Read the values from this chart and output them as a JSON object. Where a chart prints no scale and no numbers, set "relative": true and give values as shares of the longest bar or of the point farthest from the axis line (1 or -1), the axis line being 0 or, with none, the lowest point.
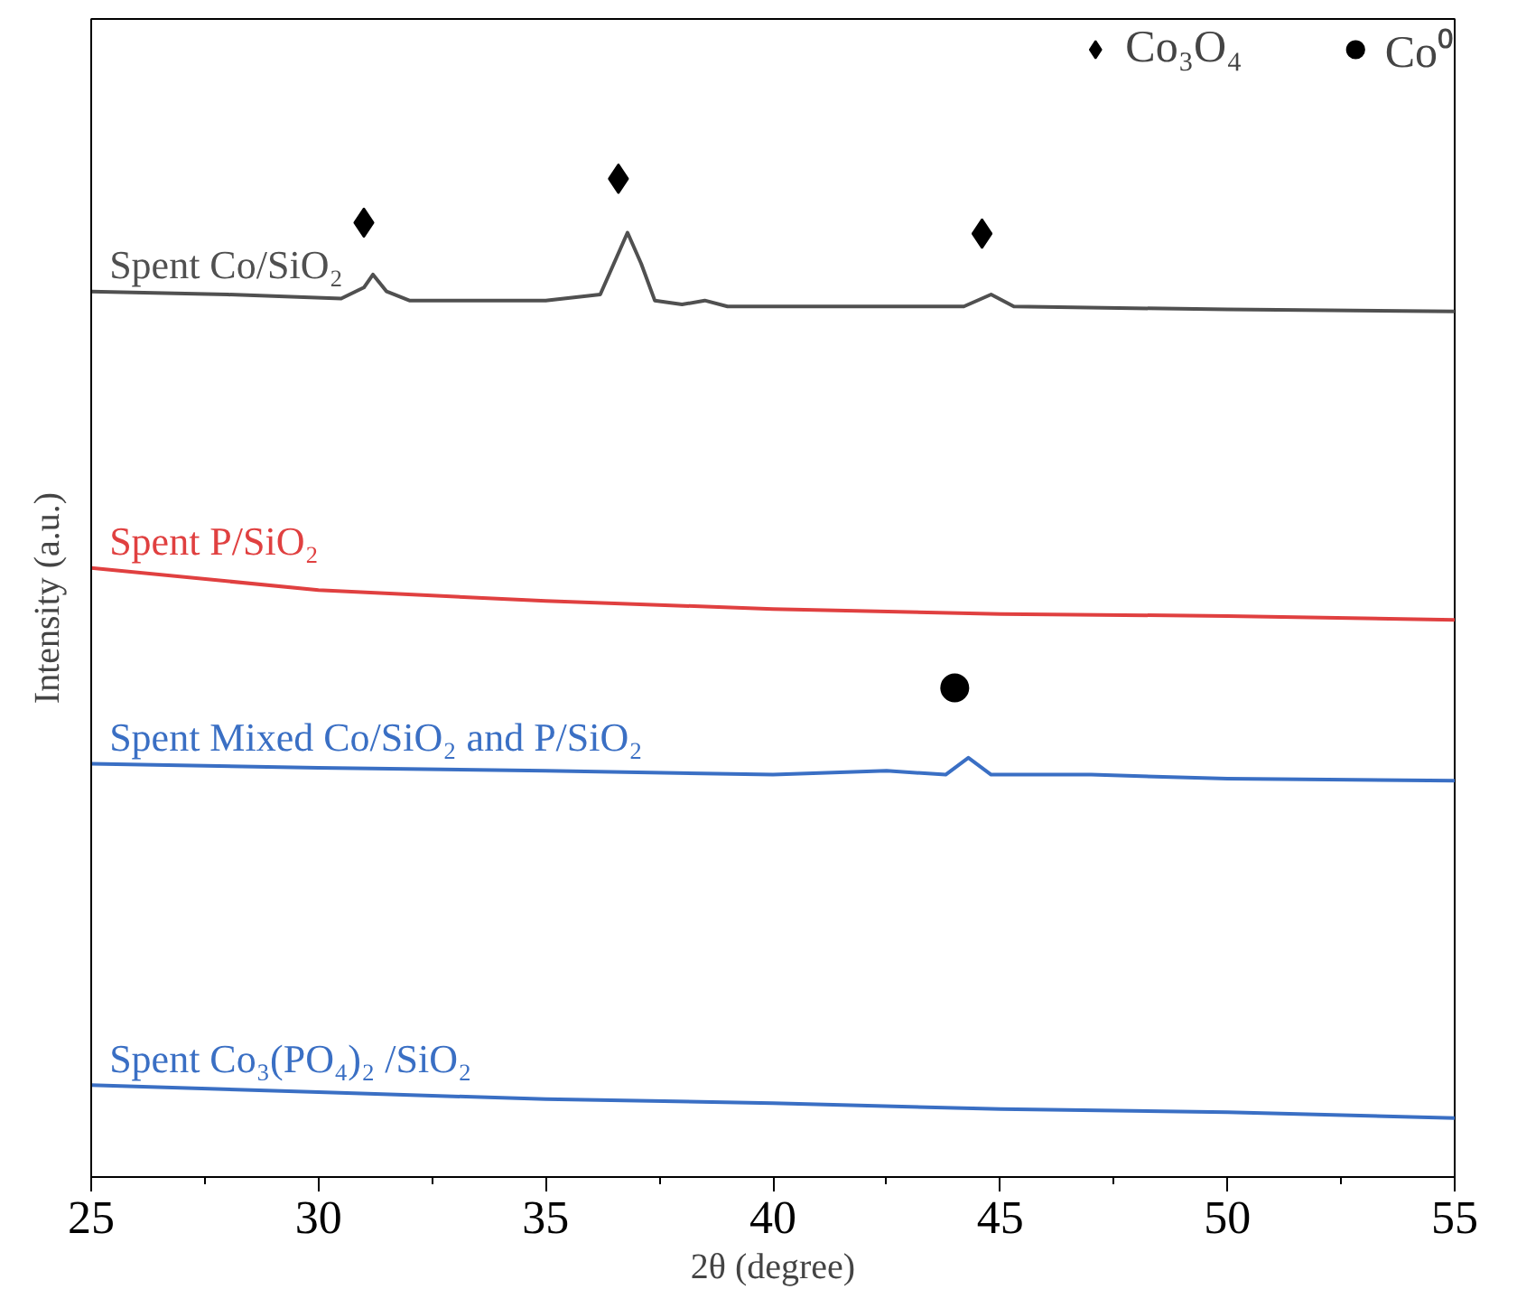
{
  "chart_data": {
    "type": "line",
    "relative": true,
    "xlabel": "2θ (degree)",
    "ylabel": "Intensity (a.u.)",
    "xlim": [
      25,
      55
    ],
    "xticks": [
      25,
      30,
      35,
      40,
      45,
      50,
      55
    ],
    "grid": false,
    "legend": "top right",
    "line_style": "solid",
    "series": [
      {
        "name": "Spent Co/SiO₂",
        "color": "#505050",
        "x": [
          25,
          28,
          30.5,
          31,
          31.2,
          31.5,
          32,
          35,
          36.2,
          36.5,
          36.8,
          37.1,
          37.4,
          38,
          38.5,
          39,
          42,
          44.2,
          44.8,
          45.3,
          50,
          55
        ],
        "values": [
          0.887,
          0.884,
          0.88,
          0.891,
          0.904,
          0.887,
          0.878,
          0.878,
          0.884,
          0.915,
          0.946,
          0.915,
          0.878,
          0.874,
          0.878,
          0.872,
          0.872,
          0.872,
          0.884,
          0.872,
          0.869,
          0.867
        ]
      },
      {
        "name": "Spent P/SiO₂",
        "color": "#e04040",
        "x": [
          25,
          30,
          35,
          40,
          45,
          50,
          55
        ],
        "values": [
          0.61,
          0.588,
          0.577,
          0.569,
          0.564,
          0.562,
          0.558
        ]
      },
      {
        "name": "Spent Mixed Co/SiO₂ and P/SiO₂",
        "color": "#3a6fc4",
        "x": [
          25,
          30,
          35,
          40,
          42.5,
          43.8,
          44.3,
          44.8,
          47,
          50,
          55
        ],
        "values": [
          0.414,
          0.41,
          0.407,
          0.403,
          0.407,
          0.403,
          0.42,
          0.403,
          0.403,
          0.399,
          0.397
        ]
      },
      {
        "name": "Spent Co₃(PO₄)₂ /SiO₂",
        "color": "#3a6fc4",
        "x": [
          25,
          30,
          35,
          40,
          45,
          50,
          55
        ],
        "values": [
          0.092,
          0.085,
          0.078,
          0.074,
          0.068,
          0.065,
          0.059
        ]
      },
      {
        "name": "Co₃O₄",
        "type": "scatter",
        "marker": "diamond",
        "color": "#000000",
        "x": [
          31,
          36.6,
          44.6
        ],
        "values": [
          0.956,
          1.0,
          0.945
        ]
      },
      {
        "name": "Co⁰",
        "type": "scatter",
        "marker": "circle",
        "color": "#000000",
        "x": [
          44
        ],
        "values": [
          0.49
        ]
      }
    ]
  }
}
